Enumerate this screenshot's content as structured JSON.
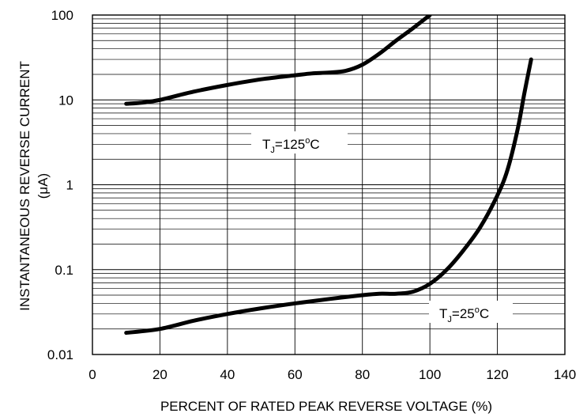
{
  "chart_data": {
    "type": "line",
    "title": "",
    "xlabel": "PERCENT OF RATED PEAK REVERSE VOLTAGE (%)",
    "ylabel_lines": [
      "INSTANTANEOUS REVERSE CURRENT",
      "(μA)"
    ],
    "x_ticks": [
      "0",
      "20",
      "40",
      "60",
      "80",
      "100",
      "120",
      "140"
    ],
    "y_ticks": [
      "0.01",
      "0.1",
      "1",
      "10",
      "100"
    ],
    "xlim": [
      0,
      140
    ],
    "ylim": [
      0.01,
      100
    ],
    "yscale": "log",
    "grid": true,
    "series": [
      {
        "name": "TJ=125°C",
        "x": [
          10,
          15,
          20,
          30,
          40,
          50,
          60,
          65,
          70,
          75,
          80,
          85,
          90,
          95,
          100
        ],
        "y": [
          9,
          9.3,
          10,
          12.5,
          15,
          17.5,
          19.5,
          20.5,
          21,
          22,
          26,
          35,
          50,
          70,
          100
        ]
      },
      {
        "name": "TJ=25°C",
        "x": [
          10,
          20,
          30,
          40,
          50,
          60,
          70,
          80,
          85,
          90,
          95,
          100,
          105,
          110,
          115,
          120,
          123,
          126,
          128,
          130
        ],
        "y": [
          0.018,
          0.02,
          0.025,
          0.03,
          0.035,
          0.04,
          0.045,
          0.05,
          0.052,
          0.052,
          0.055,
          0.068,
          0.1,
          0.17,
          0.32,
          0.75,
          1.5,
          4.5,
          12,
          30
        ]
      }
    ],
    "annotations": {
      "t125": {
        "main": "T",
        "sub": "J",
        "rest": "=125",
        "sup": "o",
        "unit": "C"
      },
      "t25": {
        "main": "T",
        "sub": "J",
        "rest": "=25",
        "sup": "o",
        "unit": "C"
      }
    }
  }
}
